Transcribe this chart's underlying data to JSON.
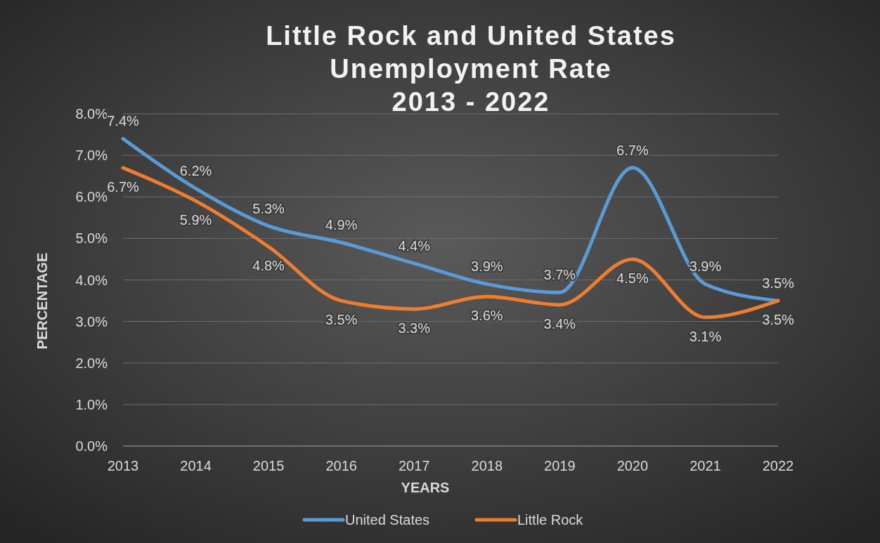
{
  "chart_data": {
    "type": "line",
    "title": "Little Rock and United States\nUnemployment Rate\n2013 - 2022",
    "xlabel": "YEARS",
    "ylabel": "PERCENTAGE",
    "categories": [
      "2013",
      "2014",
      "2015",
      "2016",
      "2017",
      "2018",
      "2019",
      "2020",
      "2021",
      "2022"
    ],
    "series": [
      {
        "name": "United States",
        "color": "#5b9bd5",
        "values": [
          7.4,
          6.2,
          5.3,
          4.9,
          4.4,
          3.9,
          3.7,
          6.7,
          3.9,
          3.5
        ],
        "value_labels": [
          "7.4%",
          "6.2%",
          "5.3%",
          "4.9%",
          "4.4%",
          "3.9%",
          "3.7%",
          "6.7%",
          "3.9%",
          "3.5%"
        ]
      },
      {
        "name": "Little Rock",
        "color": "#ed7d31",
        "values": [
          6.7,
          5.9,
          4.8,
          3.5,
          3.3,
          3.6,
          3.4,
          4.5,
          3.1,
          3.5
        ],
        "value_labels": [
          "6.7%",
          "5.9%",
          "4.8%",
          "3.5%",
          "3.3%",
          "3.6%",
          "3.4%",
          "4.5%",
          "3.1%",
          "3.5%"
        ]
      }
    ],
    "ylim": [
      0,
      8
    ],
    "yticks": [
      {
        "value": 0,
        "label": "0.0%"
      },
      {
        "value": 1,
        "label": "1.0%"
      },
      {
        "value": 2,
        "label": "2.0%"
      },
      {
        "value": 3,
        "label": "3.0%"
      },
      {
        "value": 4,
        "label": "4.0%"
      },
      {
        "value": 5,
        "label": "5.0%"
      },
      {
        "value": 6,
        "label": "6.0%"
      },
      {
        "value": 7,
        "label": "7.0%"
      },
      {
        "value": 8,
        "label": "8.0%"
      }
    ],
    "grid": "y",
    "legend": "bottom",
    "marker": "none",
    "line_style": "solid"
  }
}
